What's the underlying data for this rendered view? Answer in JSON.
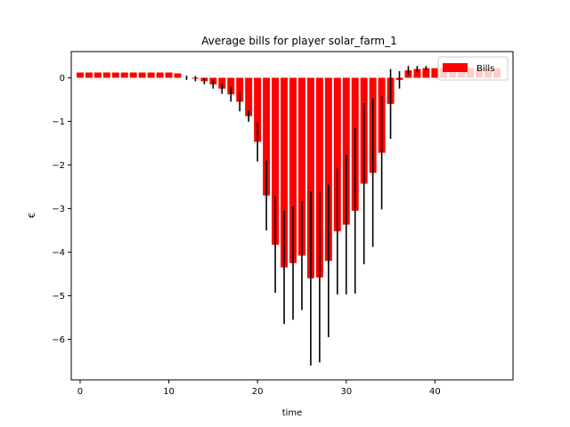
{
  "chart_data": {
    "type": "bar",
    "title": "Average bills for player solar_farm_1",
    "xlabel": "time",
    "ylabel": "€",
    "xlim": [
      -1,
      48.8
    ],
    "ylim": [
      -6.93,
      0.6
    ],
    "xticks": [
      0,
      10,
      20,
      30,
      40
    ],
    "yticks": [
      0,
      -1,
      -2,
      -3,
      -4,
      -5,
      -6
    ],
    "ytick_labels": [
      "0",
      "−1",
      "−2",
      "−3",
      "−4",
      "−5",
      "−6"
    ],
    "legend": {
      "position": "upper right",
      "entries": [
        "Bills"
      ]
    },
    "colors": {
      "bars": "#ff0000",
      "errorbars": "#000000"
    },
    "series": [
      {
        "name": "Bills",
        "x": [
          0,
          1,
          2,
          3,
          4,
          5,
          6,
          7,
          8,
          9,
          10,
          11,
          12,
          13,
          14,
          15,
          16,
          17,
          18,
          19,
          20,
          21,
          22,
          23,
          24,
          25,
          26,
          27,
          28,
          29,
          30,
          31,
          32,
          33,
          34,
          35,
          36,
          37,
          38,
          39,
          40,
          41,
          42,
          43,
          44,
          45,
          46,
          47
        ],
        "values": [
          0.12,
          0.12,
          0.12,
          0.12,
          0.12,
          0.12,
          0.12,
          0.12,
          0.12,
          0.12,
          0.12,
          0.1,
          0.0,
          -0.02,
          -0.08,
          -0.15,
          -0.25,
          -0.38,
          -0.55,
          -0.88,
          -1.47,
          -2.7,
          -3.83,
          -4.35,
          -4.25,
          -4.08,
          -4.6,
          -4.58,
          -4.2,
          -3.52,
          -3.37,
          -3.05,
          -2.43,
          -2.18,
          -1.72,
          -0.6,
          -0.05,
          0.17,
          0.2,
          0.22,
          0.22,
          0.22,
          0.22,
          0.22,
          0.22,
          0.22,
          0.22,
          0.22
        ],
        "error": [
          0,
          0,
          0,
          0,
          0,
          0,
          0,
          0,
          0,
          0,
          0,
          0,
          0.05,
          0.06,
          0.07,
          0.1,
          0.12,
          0.17,
          0.22,
          0.13,
          0.45,
          0.8,
          1.1,
          1.3,
          1.3,
          1.25,
          2.0,
          1.95,
          1.75,
          1.45,
          1.6,
          1.9,
          1.85,
          1.7,
          1.3,
          0.8,
          0.2,
          0.1,
          0.07,
          0.05,
          0,
          0,
          0,
          0,
          0,
          0,
          0,
          0
        ]
      }
    ]
  }
}
